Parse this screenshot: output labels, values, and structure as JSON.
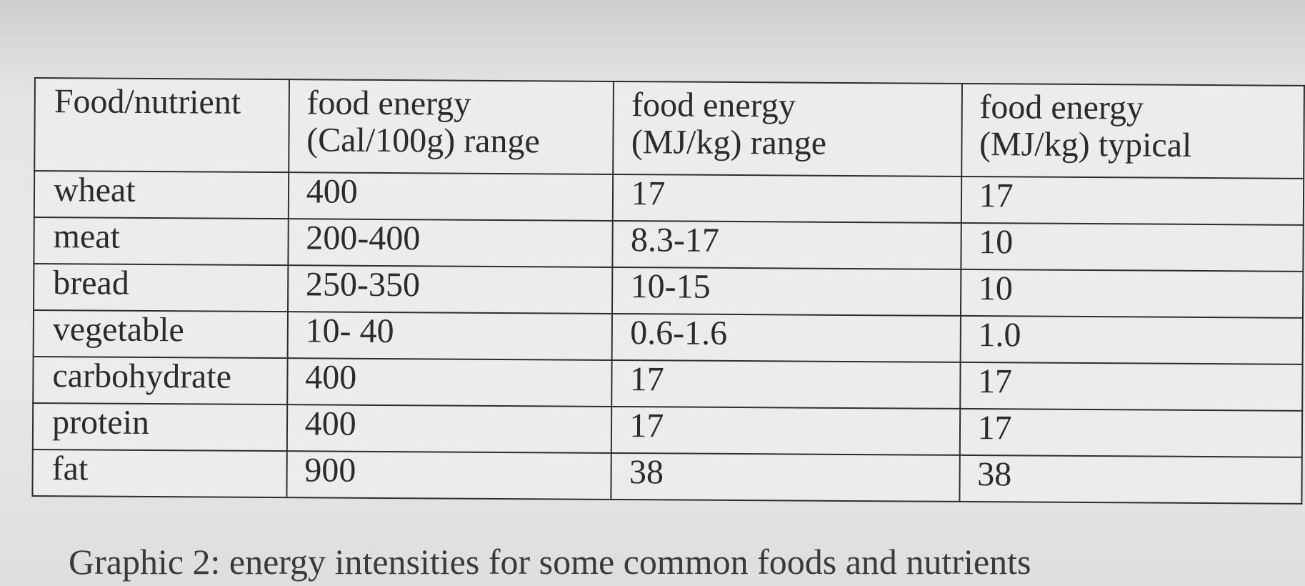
{
  "table": {
    "headers": [
      "Food/nutrient",
      "food energy (Cal/100g) range",
      "food energy (MJ/kg) range",
      "food energy (MJ/kg) typical"
    ],
    "header_lines": [
      [
        "Food/nutrient",
        ""
      ],
      [
        "food energy",
        "(Cal/100g) range"
      ],
      [
        "food energy",
        "(MJ/kg) range"
      ],
      [
        "food energy",
        "(MJ/kg) typical"
      ]
    ],
    "rows": [
      [
        "wheat",
        "400",
        "17",
        "17"
      ],
      [
        "meat",
        "200-400",
        "8.3-17",
        "10"
      ],
      [
        "bread",
        "250-350",
        "10-15",
        "10"
      ],
      [
        "vegetable",
        "10- 40",
        "0.6-1.6",
        "1.0"
      ],
      [
        "carbohydrate",
        "400",
        "17",
        "17"
      ],
      [
        "protein",
        "400",
        "17",
        "17"
      ],
      [
        "fat",
        "900",
        "38",
        "38"
      ]
    ]
  },
  "caption": "Graphic 2: energy intensities for some common foods and nutrients"
}
